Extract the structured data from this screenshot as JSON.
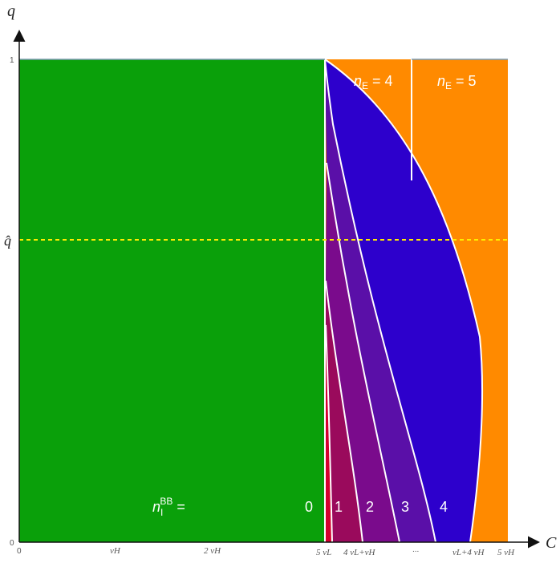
{
  "axes": {
    "x_label": "C",
    "y_label": "q",
    "y_ticks": [
      "1",
      "0"
    ],
    "y_marker": "q̂",
    "x_ticks": [
      "0",
      "vH",
      "2 vH",
      "5 vL",
      "4 vL+vH",
      "...",
      "vL+4 vH",
      "5 vH"
    ]
  },
  "labels": {
    "nE4_n": "n",
    "nE4_sub": "E",
    "nE4_eq": " = 4",
    "nE5_n": "n",
    "nE5_sub": "E",
    "nE5_eq": " = 5",
    "nI_n": "n",
    "nI_sub": "I",
    "nI_sup": "BB",
    "nI_eq": " =",
    "regions": [
      "0",
      "1",
      "2",
      "3",
      "4"
    ]
  },
  "colors": {
    "green": "#0aa00a",
    "orange": "#ff8a00",
    "blue": "#2d00cc",
    "violet": "#5a0fa8",
    "purple": "#7a0b8c",
    "magenta": "#9a0a5c",
    "red": "#d4002e",
    "threshold": "#ffee00"
  }
}
